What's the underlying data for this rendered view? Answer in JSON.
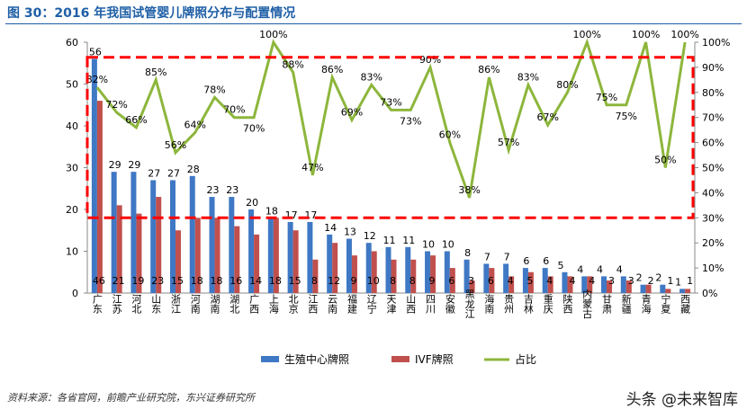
{
  "title": "图 30：2016 年我国试管婴儿牌照分布与配置情况",
  "source": "资料来源：各省官网，前瞻产业研究院，东兴证券研究所",
  "watermark": "头条 @未来智库",
  "colors": {
    "blue": "#3f78c4",
    "red": "#c0504d",
    "green": "#8db63c",
    "highlight": "#ff0000"
  },
  "chart_data": {
    "type": "bar+line",
    "categories": [
      "广东",
      "江苏",
      "河北",
      "山东",
      "浙江",
      "河南",
      "湖南",
      "湖北",
      "广西",
      "上海",
      "北京",
      "江西",
      "云南",
      "福建",
      "辽宁",
      "天津",
      "山西",
      "四川",
      "安徽",
      "黑龙江",
      "海南",
      "贵州",
      "吉林",
      "重庆",
      "陕西",
      "内蒙古",
      "甘肃",
      "新疆",
      "青海",
      "宁夏",
      "西藏"
    ],
    "series": [
      {
        "name": "生殖中心牌照",
        "type": "bar",
        "axis": "left",
        "values": [
          56,
          29,
          29,
          27,
          27,
          28,
          23,
          23,
          20,
          18,
          17,
          17,
          14,
          13,
          12,
          11,
          11,
          10,
          10,
          8,
          7,
          7,
          6,
          6,
          5,
          4,
          4,
          4,
          2,
          2,
          1
        ]
      },
      {
        "name": "IVF牌照",
        "type": "bar",
        "axis": "left",
        "values": [
          46,
          21,
          19,
          23,
          15,
          18,
          18,
          16,
          14,
          18,
          15,
          8,
          12,
          9,
          10,
          8,
          8,
          9,
          6,
          3,
          6,
          4,
          5,
          4,
          4,
          4,
          3,
          3,
          2,
          1,
          1
        ]
      },
      {
        "name": "占比",
        "type": "line",
        "axis": "right",
        "values": [
          82,
          72,
          66,
          85,
          56,
          64,
          78,
          70,
          70,
          100,
          88,
          47,
          86,
          69,
          83,
          73,
          73,
          90,
          60,
          38,
          86,
          57,
          83,
          67,
          80,
          100,
          75,
          75,
          100,
          50,
          100
        ]
      }
    ],
    "ylim": [
      0,
      60
    ],
    "yticks": [
      0,
      10,
      20,
      30,
      40,
      50,
      60
    ],
    "y2lim": [
      0,
      100
    ],
    "y2ticks": [
      "0%",
      "10%",
      "20%",
      "30%",
      "40%",
      "50%",
      "60%",
      "70%",
      "80%",
      "90%",
      "100%"
    ],
    "legend": "bottom",
    "annotation": "red dashed box highlighting 30%–95% band"
  }
}
